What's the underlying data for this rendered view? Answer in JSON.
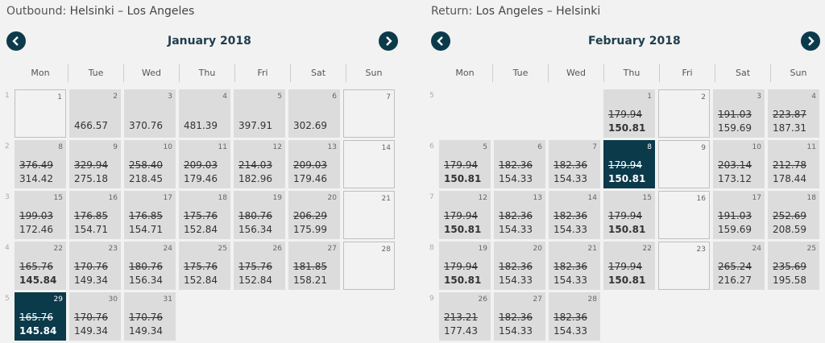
{
  "outbound": {
    "label": "Outbound:",
    "route": "Helsinki – Los Angeles",
    "month": "January 2018",
    "days": [
      "Mon",
      "Tue",
      "Wed",
      "Thu",
      "Fri",
      "Sat",
      "Sun"
    ],
    "week_numbers": [
      "1",
      "2",
      "3",
      "4",
      "5"
    ],
    "cells": [
      {
        "d": "1",
        "empty": true
      },
      {
        "d": "2",
        "price": "466.57"
      },
      {
        "d": "3",
        "price": "370.76"
      },
      {
        "d": "4",
        "price": "481.39"
      },
      {
        "d": "5",
        "price": "397.91"
      },
      {
        "d": "6",
        "price": "302.69"
      },
      {
        "d": "7",
        "empty": true
      },
      {
        "d": "8",
        "old": "376.49",
        "price": "314.42"
      },
      {
        "d": "9",
        "old": "329.94",
        "price": "275.18"
      },
      {
        "d": "10",
        "old": "258.40",
        "price": "218.45"
      },
      {
        "d": "11",
        "old": "209.03",
        "price": "179.46"
      },
      {
        "d": "12",
        "old": "214.03",
        "price": "182.96"
      },
      {
        "d": "13",
        "old": "209.03",
        "price": "179.46"
      },
      {
        "d": "14",
        "empty": true
      },
      {
        "d": "15",
        "old": "199.03",
        "price": "172.46"
      },
      {
        "d": "16",
        "old": "176.85",
        "price": "154.71"
      },
      {
        "d": "17",
        "old": "176.85",
        "price": "154.71"
      },
      {
        "d": "18",
        "old": "175.76",
        "price": "152.84"
      },
      {
        "d": "19",
        "old": "180.76",
        "price": "156.34"
      },
      {
        "d": "20",
        "old": "206.29",
        "price": "175.99"
      },
      {
        "d": "21",
        "empty": true
      },
      {
        "d": "22",
        "old": "165.76",
        "price": "145.84",
        "bold": true
      },
      {
        "d": "23",
        "old": "170.76",
        "price": "149.34"
      },
      {
        "d": "24",
        "old": "180.76",
        "price": "156.34"
      },
      {
        "d": "25",
        "old": "175.76",
        "price": "152.84"
      },
      {
        "d": "26",
        "old": "175.76",
        "price": "152.84"
      },
      {
        "d": "27",
        "old": "181.85",
        "price": "158.21"
      },
      {
        "d": "28",
        "empty": true
      },
      {
        "d": "29",
        "old": "165.76",
        "price": "145.84",
        "bold": true,
        "selected": true
      },
      {
        "d": "30",
        "old": "170.76",
        "price": "149.34"
      },
      {
        "d": "31",
        "old": "170.76",
        "price": "149.34"
      }
    ]
  },
  "return": {
    "label": "Return:",
    "route": "Los Angeles – Helsinki",
    "month": "February 2018",
    "days": [
      "Mon",
      "Tue",
      "Wed",
      "Thu",
      "Fri",
      "Sat",
      "Sun"
    ],
    "week_numbers": [
      "5",
      "6",
      "7",
      "8",
      "9"
    ],
    "cells": [
      {
        "blank": true
      },
      {
        "blank": true
      },
      {
        "blank": true
      },
      {
        "d": "1",
        "old": "179.94",
        "price": "150.81",
        "bold": true
      },
      {
        "d": "2",
        "empty": true
      },
      {
        "d": "3",
        "old": "191.03",
        "price": "159.69"
      },
      {
        "d": "4",
        "old": "223.87",
        "price": "187.31"
      },
      {
        "d": "5",
        "old": "179.94",
        "price": "150.81",
        "bold": true
      },
      {
        "d": "6",
        "old": "182.36",
        "price": "154.33"
      },
      {
        "d": "7",
        "old": "182.36",
        "price": "154.33"
      },
      {
        "d": "8",
        "old": "179.94",
        "price": "150.81",
        "bold": true,
        "selected": true
      },
      {
        "d": "9",
        "empty": true
      },
      {
        "d": "10",
        "old": "203.14",
        "price": "173.12"
      },
      {
        "d": "11",
        "old": "212.78",
        "price": "178.44"
      },
      {
        "d": "12",
        "old": "179.94",
        "price": "150.81",
        "bold": true
      },
      {
        "d": "13",
        "old": "182.36",
        "price": "154.33"
      },
      {
        "d": "14",
        "old": "182.36",
        "price": "154.33"
      },
      {
        "d": "15",
        "old": "179.94",
        "price": "150.81",
        "bold": true
      },
      {
        "d": "16",
        "empty": true
      },
      {
        "d": "17",
        "old": "191.03",
        "price": "159.69"
      },
      {
        "d": "18",
        "old": "252.69",
        "price": "208.59"
      },
      {
        "d": "19",
        "old": "179.94",
        "price": "150.81",
        "bold": true
      },
      {
        "d": "20",
        "old": "182.36",
        "price": "154.33"
      },
      {
        "d": "21",
        "old": "182.36",
        "price": "154.33"
      },
      {
        "d": "22",
        "old": "179.94",
        "price": "150.81",
        "bold": true
      },
      {
        "d": "23",
        "empty": true
      },
      {
        "d": "24",
        "old": "265.24",
        "price": "216.27"
      },
      {
        "d": "25",
        "old": "235.69",
        "price": "195.58"
      },
      {
        "d": "26",
        "old": "213.21",
        "price": "177.43"
      },
      {
        "d": "27",
        "old": "182.36",
        "price": "154.33"
      },
      {
        "d": "28",
        "old": "182.36",
        "price": "154.33"
      }
    ]
  },
  "icons": {
    "prev": "chevron-left-icon",
    "next": "chevron-right-icon"
  },
  "colors": {
    "selected": "#0b3a4b",
    "cell": "#dcdcdc",
    "nav": "#0b3a4b"
  }
}
